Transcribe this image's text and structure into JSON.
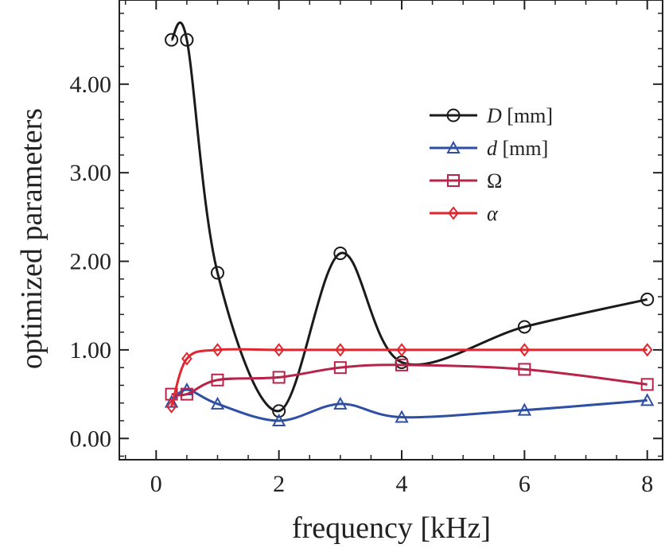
{
  "chart_data": {
    "type": "line",
    "xlabel": "frequency [kHz]",
    "ylabel": "optimized parameters",
    "xlim": [
      -0.6,
      8.25
    ],
    "ylim": [
      -0.24,
      4.95
    ],
    "xticks": [
      0,
      2,
      4,
      6,
      8
    ],
    "xtick_labels": [
      "0",
      "2",
      "4",
      "6",
      "8"
    ],
    "yticks": [
      0,
      1,
      2,
      3,
      4
    ],
    "ytick_labels": [
      "0.00",
      "1.00",
      "2.00",
      "3.00",
      "4.00"
    ],
    "legend_position": "upper-right",
    "grid": false,
    "series": [
      {
        "name": "D",
        "unit": "[mm]",
        "italic_name": true,
        "marker": "circle",
        "color": "#1a1a1a",
        "x": [
          0.25,
          0.5,
          1,
          2,
          3,
          4,
          6,
          8
        ],
        "y": [
          4.5,
          4.5,
          1.87,
          0.31,
          2.09,
          0.86,
          1.26,
          1.57
        ]
      },
      {
        "name": "d",
        "unit": "[mm]",
        "italic_name": true,
        "marker": "triangle",
        "color": "#2e4fa3",
        "x": [
          0.25,
          0.5,
          1,
          2,
          3,
          4,
          6,
          8
        ],
        "y": [
          0.41,
          0.55,
          0.39,
          0.2,
          0.39,
          0.24,
          0.32,
          0.43
        ]
      },
      {
        "name": "Ω",
        "unit": "",
        "italic_name": false,
        "marker": "square",
        "color": "#b8234a",
        "x": [
          0.25,
          0.5,
          1,
          2,
          3,
          4,
          6,
          8
        ],
        "y": [
          0.5,
          0.5,
          0.66,
          0.69,
          0.8,
          0.83,
          0.78,
          0.61
        ]
      },
      {
        "name": "α",
        "unit": "",
        "italic_name": true,
        "marker": "diamond",
        "color": "#e0262e",
        "x": [
          0.25,
          0.5,
          1,
          2,
          3,
          4,
          6,
          8
        ],
        "y": [
          0.36,
          0.9,
          1.0,
          1.0,
          1.0,
          1.0,
          1.0,
          1.0
        ]
      }
    ]
  }
}
